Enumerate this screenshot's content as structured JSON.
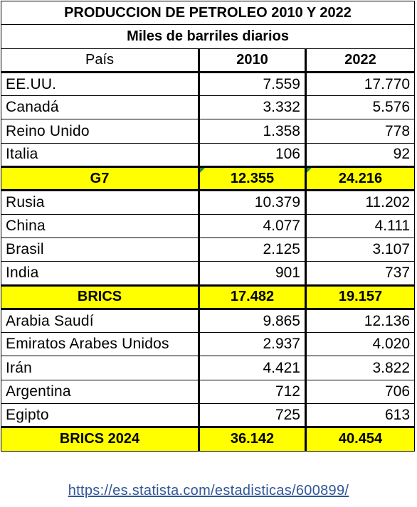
{
  "title": "PRODUCCION DE PETROLEO 2010 Y 2022",
  "subtitle": "Miles de barriles diarios",
  "headers": {
    "country": "País",
    "y2010": "2010",
    "y2022": "2022"
  },
  "groups": [
    {
      "rows": [
        {
          "country": "EE.UU.",
          "y2010": "7.559",
          "y2022": "17.770"
        },
        {
          "country": "Canadá",
          "y2010": "3.332",
          "y2022": "5.576"
        },
        {
          "country": "Reino Unido",
          "y2010": "1.358",
          "y2022": "778"
        },
        {
          "country": "Italia",
          "y2010": "106",
          "y2022": "92"
        }
      ],
      "total": {
        "label": "G7",
        "y2010": "12.355",
        "y2022": "24.216"
      }
    },
    {
      "rows": [
        {
          "country": "Rusia",
          "y2010": "10.379",
          "y2022": "11.202"
        },
        {
          "country": "China",
          "y2010": "4.077",
          "y2022": "4.111"
        },
        {
          "country": "Brasil",
          "y2010": "2.125",
          "y2022": "3.107"
        },
        {
          "country": "India",
          "y2010": "901",
          "y2022": "737"
        }
      ],
      "total": {
        "label": "BRICS",
        "y2010": "17.482",
        "y2022": "19.157"
      }
    },
    {
      "rows": [
        {
          "country": "Arabia Saudí",
          "y2010": "9.865",
          "y2022": "12.136"
        },
        {
          "country": "Emiratos Arabes Unidos",
          "y2010": "2.937",
          "y2022": "4.020"
        },
        {
          "country": "Irán",
          "y2010": "4.421",
          "y2022": "3.822"
        },
        {
          "country": "Argentina",
          "y2010": "712",
          "y2022": "706"
        },
        {
          "country": "Egipto",
          "y2010": "725",
          "y2022": "613"
        }
      ],
      "total": {
        "label": "BRICS 2024",
        "y2010": "36.142",
        "y2022": "40.454"
      }
    }
  ],
  "source_link": "https://es.statista.com/estadisticas/600899/",
  "colors": {
    "total_highlight": "#ffff00",
    "link": "#2f5597"
  }
}
